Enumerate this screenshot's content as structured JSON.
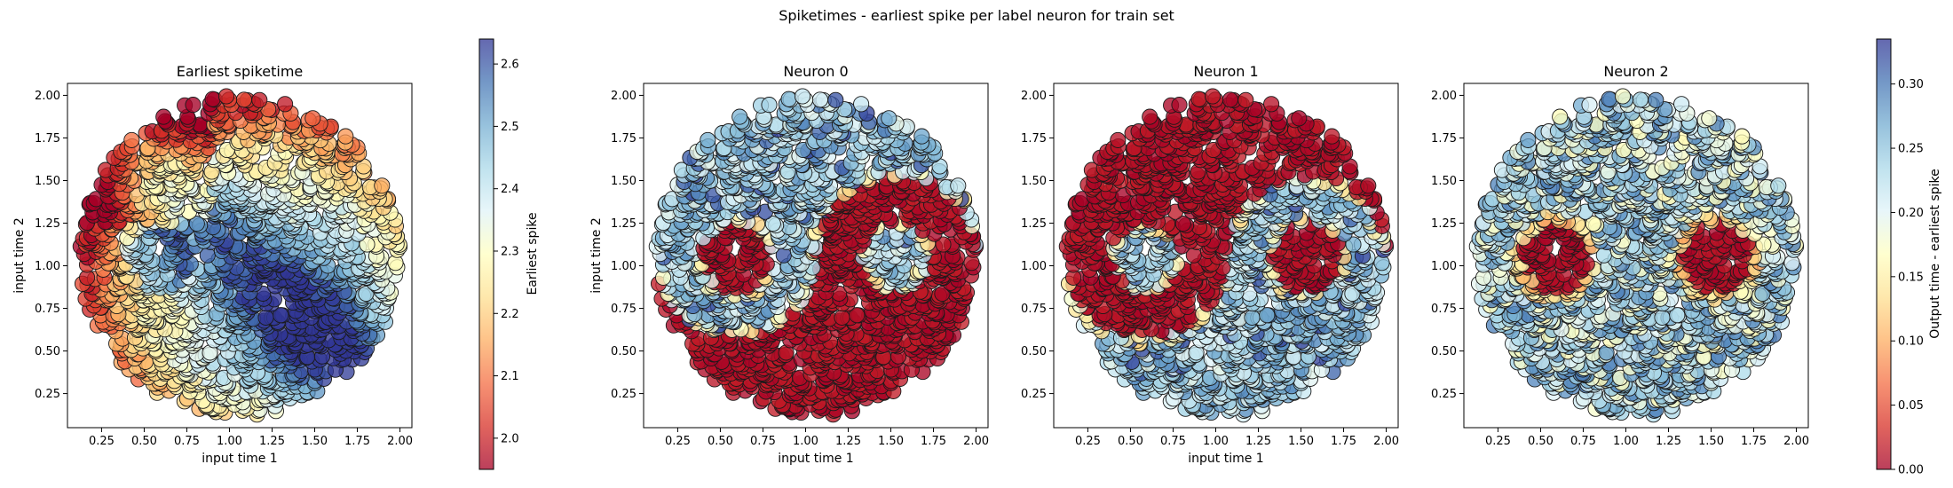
{
  "figure": {
    "suptitle": "Spiketimes - earliest spike per label neuron for train set"
  },
  "chart_data": [
    {
      "type": "scatter",
      "title": "Earliest spiketime",
      "xlabel": "input time 1",
      "ylabel": "input time 2",
      "xlim": [
        0.05,
        2.07
      ],
      "ylim": [
        0.05,
        2.07
      ],
      "xticks": [
        "0.25",
        "0.50",
        "0.75",
        "1.00",
        "1.25",
        "1.50",
        "1.75",
        "2.00"
      ],
      "yticks": [
        "0.25",
        "0.50",
        "0.75",
        "1.00",
        "1.25",
        "1.50",
        "1.75",
        "2.00"
      ],
      "domain": {
        "center": [
          1.06,
          1.06
        ],
        "radius": 0.94
      },
      "color_variable": "earliest spike time",
      "colorbar": {
        "label": "Earliest spike",
        "range": [
          1.95,
          2.64
        ],
        "ticks": [
          "2.0",
          "2.1",
          "2.2",
          "2.3",
          "2.4",
          "2.5",
          "2.6"
        ],
        "cmap": "RdYlBu"
      },
      "pattern": "yin-yang; upper-left red ~2.0, band through center dark blue ~2.6, right lobe pale yellow/blue ~2.3-2.5, lower rim orange ~2.1"
    },
    {
      "type": "scatter",
      "title": "Neuron 0",
      "xlabel": "input time 1",
      "ylabel": "input time 2",
      "xlim": [
        0.05,
        2.07
      ],
      "ylim": [
        0.05,
        2.07
      ],
      "xticks": [
        "0.25",
        "0.50",
        "0.75",
        "1.00",
        "1.25",
        "1.50",
        "1.75",
        "2.00"
      ],
      "yticks": [
        "0.25",
        "0.50",
        "0.75",
        "1.00",
        "1.25",
        "1.50",
        "1.75",
        "2.00"
      ],
      "color_variable": "output time - earliest spike",
      "pattern": "yin region (lower-right) ~0.0 (red), remainder and right dot ~0.25-0.33 (blue)"
    },
    {
      "type": "scatter",
      "title": "Neuron 1",
      "xlabel": "input time 1",
      "ylabel": "",
      "xlim": [
        0.05,
        2.07
      ],
      "ylim": [
        0.05,
        2.07
      ],
      "xticks": [
        "0.25",
        "0.50",
        "0.75",
        "1.00",
        "1.25",
        "1.50",
        "1.75",
        "2.00"
      ],
      "yticks": [
        "0.25",
        "0.50",
        "0.75",
        "1.00",
        "1.25",
        "1.50",
        "1.75",
        "2.00"
      ],
      "color_variable": "output time - earliest spike",
      "pattern": "yang region (upper-left) ~0.0 (red), remainder and left dot ~0.25-0.33 (blue)"
    },
    {
      "type": "scatter",
      "title": "Neuron 2",
      "xlabel": "",
      "ylabel": "",
      "xlim": [
        0.05,
        2.07
      ],
      "ylim": [
        0.05,
        2.07
      ],
      "xticks": [
        "0.25",
        "0.50",
        "0.75",
        "1.00",
        "1.25",
        "1.50",
        "1.75",
        "2.00"
      ],
      "yticks": [
        "0.25",
        "0.50",
        "0.75",
        "1.00",
        "1.25",
        "1.50",
        "1.75",
        "2.00"
      ],
      "color_variable": "output time - earliest spike",
      "dots": [
        {
          "center": [
            0.65,
            1.09
          ],
          "radius": 0.2
        },
        {
          "center": [
            1.5,
            1.09
          ],
          "radius": 0.2
        }
      ],
      "pattern": "two dots ~0.0 (red), elsewhere ~0.15-0.33 (yellow to blue)",
      "colorbar": {
        "label": "Output time - earliest spike",
        "range": [
          0.0,
          0.335
        ],
        "ticks": [
          "0.00",
          "0.05",
          "0.10",
          "0.15",
          "0.20",
          "0.25",
          "0.30"
        ],
        "cmap": "RdYlBu"
      }
    }
  ]
}
